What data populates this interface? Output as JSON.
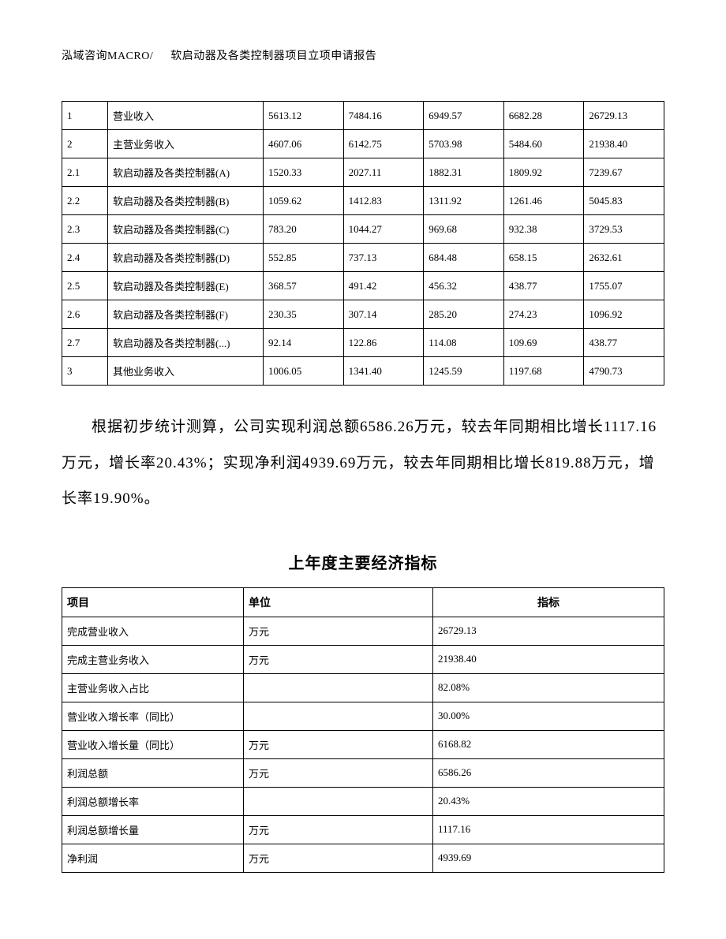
{
  "header": {
    "left": "泓域咨询MACRO/",
    "right": "软启动器及各类控制器项目立项申请报告"
  },
  "table1": {
    "rows": [
      {
        "idx": "1",
        "name": "营业收入",
        "v1": "5613.12",
        "v2": "7484.16",
        "v3": "6949.57",
        "v4": "6682.28",
        "v5": "26729.13"
      },
      {
        "idx": "2",
        "name": "主营业务收入",
        "v1": "4607.06",
        "v2": "6142.75",
        "v3": "5703.98",
        "v4": "5484.60",
        "v5": "21938.40"
      },
      {
        "idx": "2.1",
        "name": "软启动器及各类控制器(A)",
        "v1": "1520.33",
        "v2": "2027.11",
        "v3": "1882.31",
        "v4": "1809.92",
        "v5": "7239.67"
      },
      {
        "idx": "2.2",
        "name": "软启动器及各类控制器(B)",
        "v1": "1059.62",
        "v2": "1412.83",
        "v3": "1311.92",
        "v4": "1261.46",
        "v5": "5045.83"
      },
      {
        "idx": "2.3",
        "name": "软启动器及各类控制器(C)",
        "v1": "783.20",
        "v2": "1044.27",
        "v3": "969.68",
        "v4": "932.38",
        "v5": "3729.53"
      },
      {
        "idx": "2.4",
        "name": "软启动器及各类控制器(D)",
        "v1": "552.85",
        "v2": "737.13",
        "v3": "684.48",
        "v4": "658.15",
        "v5": "2632.61"
      },
      {
        "idx": "2.5",
        "name": "软启动器及各类控制器(E)",
        "v1": "368.57",
        "v2": "491.42",
        "v3": "456.32",
        "v4": "438.77",
        "v5": "1755.07"
      },
      {
        "idx": "2.6",
        "name": "软启动器及各类控制器(F)",
        "v1": "230.35",
        "v2": "307.14",
        "v3": "285.20",
        "v4": "274.23",
        "v5": "1096.92"
      },
      {
        "idx": "2.7",
        "name": "软启动器及各类控制器(...)",
        "v1": "92.14",
        "v2": "122.86",
        "v3": "114.08",
        "v4": "109.69",
        "v5": "438.77"
      },
      {
        "idx": "3",
        "name": "其他业务收入",
        "v1": "1006.05",
        "v2": "1341.40",
        "v3": "1245.59",
        "v4": "1197.68",
        "v5": "4790.73"
      }
    ]
  },
  "paragraph": "根据初步统计测算，公司实现利润总额6586.26万元，较去年同期相比增长1117.16万元，增长率20.43%；实现净利润4939.69万元，较去年同期相比增长819.88万元，增长率19.90%。",
  "section_title": "上年度主要经济指标",
  "table2": {
    "headers": {
      "c1": "项目",
      "c2": "单位",
      "c3": "指标"
    },
    "rows": [
      {
        "c1": "完成营业收入",
        "c2": "万元",
        "c3": "26729.13"
      },
      {
        "c1": "完成主营业务收入",
        "c2": "万元",
        "c3": "21938.40"
      },
      {
        "c1": "主营业务收入占比",
        "c2": "",
        "c3": "82.08%"
      },
      {
        "c1": "营业收入增长率（同比）",
        "c2": "",
        "c3": "30.00%"
      },
      {
        "c1": "营业收入增长量（同比）",
        "c2": "万元",
        "c3": "6168.82"
      },
      {
        "c1": "利润总额",
        "c2": "万元",
        "c3": "6586.26"
      },
      {
        "c1": "利润总额增长率",
        "c2": "",
        "c3": "20.43%"
      },
      {
        "c1": "利润总额增长量",
        "c2": "万元",
        "c3": "1117.16"
      },
      {
        "c1": "净利润",
        "c2": "万元",
        "c3": "4939.69"
      }
    ]
  }
}
